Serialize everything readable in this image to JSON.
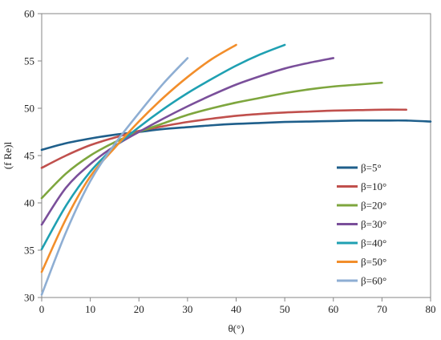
{
  "chart_data": {
    "type": "line",
    "title": "",
    "xlabel": "θ(°)",
    "ylabel": "(f Re)l",
    "xlim": [
      0,
      80
    ],
    "ylim": [
      30,
      60
    ],
    "xticks": [
      0,
      10,
      20,
      30,
      40,
      50,
      60,
      70,
      80
    ],
    "yticks": [
      30,
      35,
      40,
      45,
      50,
      55,
      60
    ],
    "grid": false,
    "legend_position": "right",
    "series": [
      {
        "name": "β=5°",
        "color": "#1f5f8b",
        "x": [
          0,
          5,
          10,
          15,
          20,
          25,
          30,
          35,
          40,
          45,
          50,
          55,
          60,
          65,
          70,
          75,
          80
        ],
        "y": [
          45.6,
          46.3,
          46.8,
          47.2,
          47.5,
          47.8,
          48.0,
          48.2,
          48.35,
          48.45,
          48.55,
          48.6,
          48.65,
          48.7,
          48.7,
          48.7,
          48.6
        ]
      },
      {
        "name": "β=10°",
        "color": "#c0504d",
        "x": [
          0,
          5,
          10,
          15,
          20,
          25,
          30,
          35,
          40,
          45,
          50,
          55,
          60,
          65,
          70,
          75
        ],
        "y": [
          43.7,
          45.0,
          46.1,
          46.9,
          47.6,
          48.1,
          48.55,
          48.9,
          49.2,
          49.4,
          49.55,
          49.65,
          49.75,
          49.8,
          49.85,
          49.85
        ]
      },
      {
        "name": "β=20°",
        "color": "#7ea63e",
        "x": [
          0,
          5,
          10,
          15,
          20,
          25,
          30,
          35,
          40,
          45,
          50,
          55,
          60,
          65,
          70
        ],
        "y": [
          40.5,
          43.1,
          45.0,
          46.4,
          47.5,
          48.4,
          49.3,
          50.0,
          50.6,
          51.1,
          51.6,
          52.0,
          52.3,
          52.5,
          52.7
        ]
      },
      {
        "name": "β=30°",
        "color": "#7a4f9a",
        "x": [
          0,
          5,
          10,
          15,
          20,
          25,
          30,
          35,
          40,
          45,
          50,
          55,
          60
        ],
        "y": [
          37.7,
          41.6,
          44.1,
          46.0,
          47.5,
          48.9,
          50.2,
          51.4,
          52.5,
          53.4,
          54.2,
          54.8,
          55.3
        ]
      },
      {
        "name": "β=40°",
        "color": "#1fa0b2",
        "x": [
          0,
          5,
          10,
          15,
          20,
          25,
          30,
          35,
          40,
          45,
          50
        ],
        "y": [
          35.1,
          39.7,
          43.3,
          45.9,
          48.0,
          49.9,
          51.6,
          53.1,
          54.5,
          55.7,
          56.7
        ]
      },
      {
        "name": "β=50°",
        "color": "#f28e2b",
        "x": [
          0,
          5,
          10,
          15,
          20,
          25,
          30,
          35,
          40
        ],
        "y": [
          32.7,
          38.3,
          42.8,
          45.8,
          48.6,
          51.1,
          53.3,
          55.2,
          56.7
        ]
      },
      {
        "name": "β=60°",
        "color": "#8eaed3",
        "x": [
          0,
          5,
          10,
          15,
          20,
          25,
          30
        ],
        "y": [
          30.3,
          36.9,
          42.3,
          46.2,
          49.5,
          52.6,
          55.3
        ]
      }
    ]
  }
}
